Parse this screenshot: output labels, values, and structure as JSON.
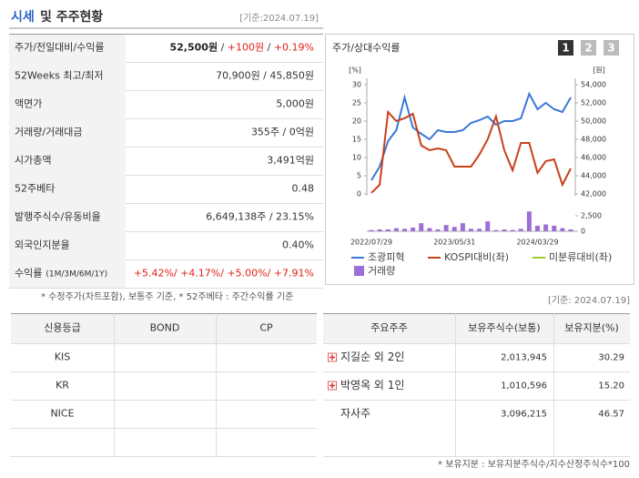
{
  "header": {
    "title_main": "시세",
    "title_rest": "및 주주현황",
    "date": "[기준:2024.07.19]"
  },
  "quote": {
    "rows": [
      {
        "label": "주가/전일대비/수익률",
        "value": [
          {
            "text": "52,500원",
            "style": "bold"
          },
          {
            "text": " / "
          },
          {
            "text": "+100원",
            "style": "up"
          },
          {
            "text": " / "
          },
          {
            "text": "+0.19%",
            "style": "up"
          }
        ]
      },
      {
        "label": "52Weeks 최고/최저",
        "value": [
          {
            "text": "70,900원 / 45,850원"
          }
        ]
      },
      {
        "label": "액면가",
        "value": [
          {
            "text": "5,000원"
          }
        ]
      },
      {
        "label": "거래량/거래대금",
        "value": [
          {
            "text": "355주 / 0억원"
          }
        ]
      },
      {
        "label": "시가총액",
        "value": [
          {
            "text": "3,491억원"
          }
        ]
      },
      {
        "label": "52주베타",
        "value": [
          {
            "text": "0.48"
          }
        ]
      },
      {
        "label": "발행주식수/유동비율",
        "value": [
          {
            "text": "6,649,138주 / 23.15%"
          }
        ]
      },
      {
        "label": "외국인지분율",
        "value": [
          {
            "text": "0.40%"
          }
        ]
      },
      {
        "label": "수익률",
        "sublabel": "(1M/3M/6M/1Y)",
        "value": [
          {
            "text": "+5.42%/ +4.17%/ +5.00%/ +7.91%",
            "style": "up"
          }
        ]
      }
    ],
    "note": "* 수정주가(차트포함), 보통주 기준, * 52주베타 : 주간수익률 기준"
  },
  "chart": {
    "type": "line",
    "title": "주가/상대수익률",
    "buttons": [
      "1",
      "2",
      "3"
    ],
    "selected": 0,
    "y_unit": "[%]",
    "y2_unit": "[원]",
    "categories": [
      "2022/07/29",
      null,
      null,
      null,
      null,
      null,
      null,
      null,
      null,
      null,
      "2023/05/31",
      null,
      null,
      null,
      null,
      null,
      null,
      null,
      null,
      null,
      "2024/03/29",
      null,
      null,
      null,
      null
    ],
    "ylim": [
      0,
      30
    ],
    "yticks": [
      0,
      5,
      10,
      15,
      20,
      25,
      30
    ],
    "y2lim": [
      42000,
      54000
    ],
    "y2ticks": [
      {
        "value": 42000,
        "label": "42,000"
      },
      {
        "value": 44000,
        "label": "44,000"
      },
      {
        "value": 46000,
        "label": "46,000"
      },
      {
        "value": 48000,
        "label": "48,000"
      },
      {
        "value": 50000,
        "label": "50,000"
      },
      {
        "value": 52000,
        "label": "52,000"
      },
      {
        "value": 54000,
        "label": "54,000"
      }
    ],
    "vlim": [
      0,
      5000
    ],
    "vticks": [
      0,
      {
        "value": 2500,
        "label": "2,500"
      }
    ],
    "series": [
      {
        "name": "조광피혁",
        "color": "#3a78d8",
        "axis": "y2",
        "values": [
          43500,
          45000,
          47800,
          49000,
          52600,
          49300,
          48600,
          48000,
          49000,
          48800,
          48800,
          49000,
          49800,
          50100,
          50500,
          49600,
          50000,
          50000,
          50300,
          53000,
          51300,
          52000,
          51300,
          51000,
          52600
        ]
      },
      {
        "name": "KOSPI대비(좌)",
        "color": "#c8401a",
        "values": [
          0.3,
          2.5,
          22.5,
          20,
          20.8,
          22,
          13.3,
          12,
          12.5,
          12,
          7.5,
          7.5,
          7.5,
          10.8,
          15,
          21.3,
          12,
          6.5,
          14,
          14,
          5.8,
          9,
          9.5,
          2.5,
          7
        ]
      },
      {
        "name": "미분류대비(좌)",
        "color": "#9acd32",
        "values": [
          null,
          null,
          null,
          null,
          null,
          null,
          null,
          null,
          null,
          null,
          null,
          null,
          null,
          null,
          null,
          null,
          null,
          null,
          null,
          null,
          null,
          null,
          null,
          null,
          null
        ]
      },
      {
        "name": "거래량",
        "color": "#9b6fd6",
        "type": "bar",
        "axis": "volume",
        "values": [
          200,
          300,
          300,
          500,
          400,
          600,
          1300,
          500,
          300,
          1000,
          700,
          1300,
          400,
          400,
          1600,
          200,
          300,
          200,
          400,
          3200,
          900,
          1100,
          900,
          500,
          300
        ]
      }
    ]
  },
  "credit": {
    "header": [
      "신용등급",
      "BOND",
      "CP"
    ],
    "rows": [
      [
        "KIS"
      ],
      [
        "KR"
      ],
      [
        "NICE"
      ]
    ]
  },
  "holders": {
    "date": "[기준: 2024.07.19]",
    "header": [
      "주요주주",
      "보유주식수(보통)",
      "보유지분(%)"
    ],
    "rows": [
      {
        "name": "지길순 외 2인",
        "expand": true,
        "shares": "2,013,945",
        "pct": "30.29"
      },
      {
        "name": "박영옥 외 1인",
        "expand": true,
        "shares": "1,010,596",
        "pct": "15.20"
      },
      {
        "name": "자사주",
        "expand": false,
        "shares": "3,096,215",
        "pct": "46.57"
      }
    ],
    "note": "* 보유지분 : 보유지분주식수/지수산정주식수*100"
  }
}
